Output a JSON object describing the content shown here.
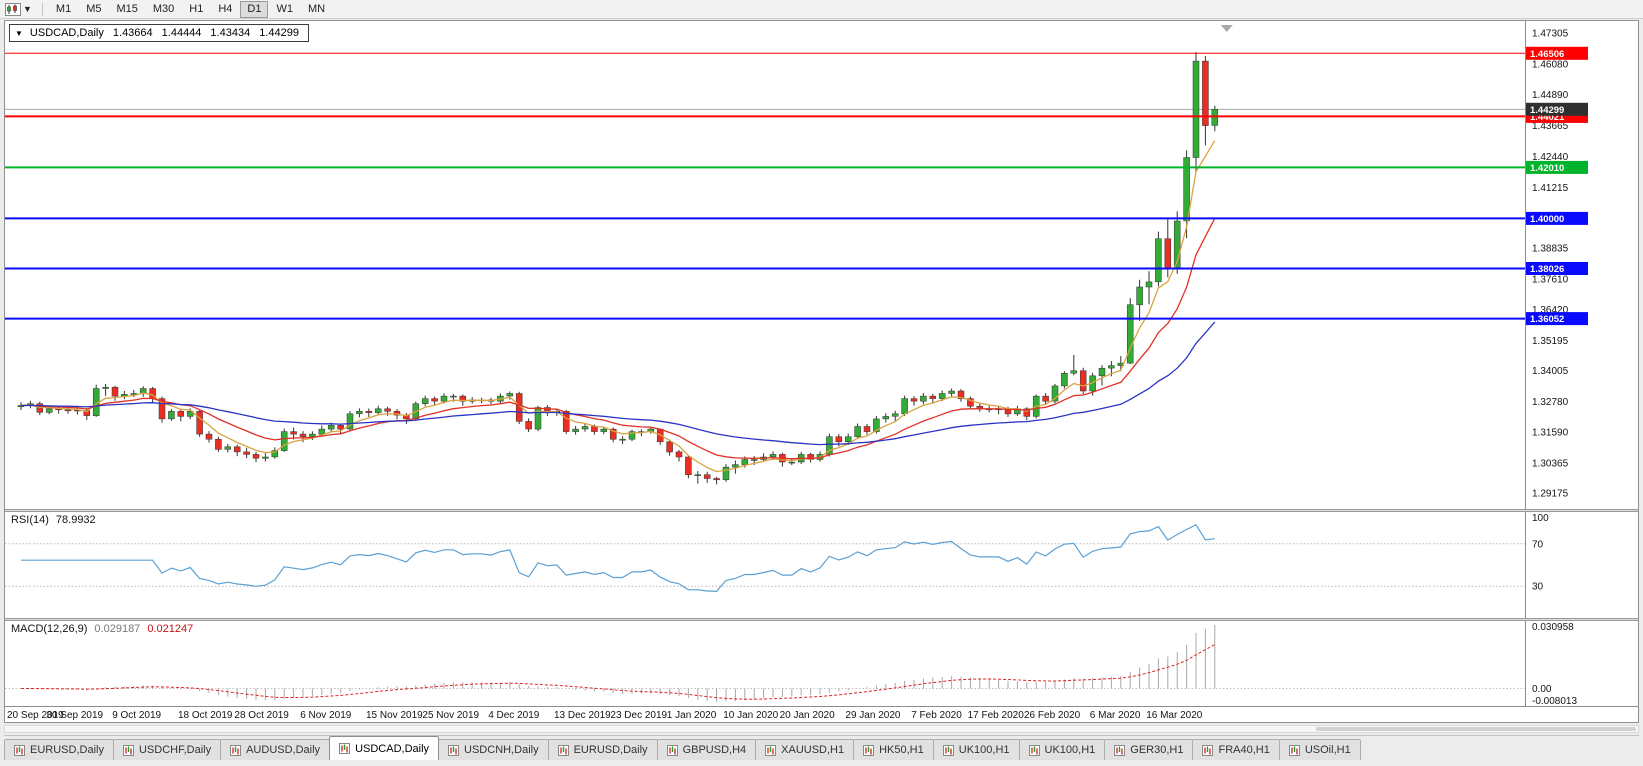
{
  "toolbar": {
    "chart_dropdown_arrow": "▼",
    "timeframes": [
      "M1",
      "M5",
      "M15",
      "M30",
      "H1",
      "H4",
      "D1",
      "W1",
      "MN"
    ],
    "active_timeframe": "D1"
  },
  "header": {
    "arrow": "▼",
    "symbol": "USDCAD,Daily",
    "open": "1.43664",
    "high": "1.44444",
    "low": "1.43434",
    "close": "1.44299"
  },
  "colors": {
    "bull": "#33ab36",
    "bear": "#ea2e24",
    "wick": "#333333",
    "ma_fast": "#d8a43e",
    "ma_medium": "#e03127",
    "ma_slow": "#2a34c4",
    "rsi_line": "#5ba0d4",
    "macd_histogram": "#a8a8a8",
    "macd_signal": "#e02424",
    "current_price_box": "#2f2f2f",
    "current_price_line": "#a8a8a8",
    "scale_text": "#141414"
  },
  "rsi": {
    "name": "RSI(14)",
    "value": "78.9932",
    "period": 14,
    "levels": [
      70,
      30
    ],
    "scale_values": [
      100,
      70,
      30
    ],
    "scale_labels": [
      "100",
      "70",
      "30"
    ]
  },
  "macd": {
    "name": "MACD(12,26,9)",
    "value_main": "0.029187",
    "value_signal": "0.021247",
    "fast": 12,
    "slow": 26,
    "signal": 9,
    "scale_top": "0.030958",
    "scale_zero": "0.00",
    "scale_bottom": "-0.008013",
    "range_min": -0.008013,
    "range_max": 0.030958
  },
  "tabs": {
    "active_index": 3,
    "items": [
      "EURUSD,Daily",
      "USDCHF,Daily",
      "AUDUSD,Daily",
      "USDCAD,Daily",
      "USDCNH,Daily",
      "EURUSD,Daily",
      "GBPUSD,H4",
      "XAUUSD,H1",
      "HK50,H1",
      "UK100,H1",
      "UK100,H1",
      "GER30,H1",
      "FRA40,H1",
      "USOil,H1"
    ]
  },
  "chart_data": {
    "type": "candlestick",
    "symbol": "USDCAD",
    "timeframe": "Daily",
    "y_range": [
      1.2855,
      1.4778
    ],
    "y_tick_labels": [
      "1.47305",
      "1.46080",
      "1.44890",
      "1.43665",
      "1.42440",
      "1.41215",
      "1.39990",
      "1.38835",
      "1.37610",
      "1.36420",
      "1.35195",
      "1.34005",
      "1.32780",
      "1.31590",
      "1.30365",
      "1.29175"
    ],
    "x_labels": [
      "20 Sep 2019",
      "30 Sep 2019",
      "9 Oct 2019",
      "18 Oct 2019",
      "28 Oct 2019",
      "6 Nov 2019",
      "15 Nov 2019",
      "25 Nov 2019",
      "4 Dec 2019",
      "13 Dec 2019",
      "23 Dec 2019",
      "1 Jan 2020",
      "10 Jan 2020",
      "20 Jan 2020",
      "29 Jan 2020",
      "7 Feb 2020",
      "17 Feb 2020",
      "26 Feb 2020",
      "6 Mar 2020",
      "16 Mar 2020"
    ],
    "x_label_indices": [
      0,
      6,
      13,
      20,
      26,
      33,
      40,
      46,
      53,
      60,
      66,
      72,
      78,
      84,
      91,
      98,
      104,
      110,
      117,
      123
    ],
    "horizontal_lines": [
      {
        "price": 1.46506,
        "label": "1.46506",
        "color": "#fe0000",
        "width": 1
      },
      {
        "price": 1.44021,
        "label": "1.44021",
        "color": "#fe0000",
        "width": 2
      },
      {
        "price": 1.4201,
        "label": "1.42010",
        "color": "#00b32c",
        "width": 2
      },
      {
        "price": 1.4,
        "label": "1.40000",
        "color": "#0a0afe",
        "width": 2
      },
      {
        "price": 1.38026,
        "label": "1.38026",
        "color": "#0a0afe",
        "width": 2
      },
      {
        "price": 1.36052,
        "label": "1.36052",
        "color": "#0a0afe",
        "width": 2
      }
    ],
    "current_price": {
      "price": 1.44299,
      "label": "1.44299"
    },
    "moving_averages": [
      {
        "period": 5,
        "method": "ema",
        "color_key": "ma_fast"
      },
      {
        "period": 13,
        "method": "ema",
        "color_key": "ma_medium"
      },
      {
        "period": 40,
        "method": "ema",
        "color_key": "ma_slow"
      }
    ],
    "indicators": [
      {
        "type": "RSI",
        "period": 14,
        "last_value": 78.9932
      },
      {
        "type": "MACD",
        "fast": 12,
        "slow": 26,
        "signal": 9,
        "last_main": 0.029187,
        "last_signal": 0.021247
      }
    ],
    "candles": [
      [
        1.3258,
        1.3276,
        1.3245,
        1.3263
      ],
      [
        1.3263,
        1.3281,
        1.3252,
        1.327
      ],
      [
        1.327,
        1.3278,
        1.3225,
        1.3236
      ],
      [
        1.3236,
        1.3262,
        1.3228,
        1.325
      ],
      [
        1.325,
        1.3259,
        1.3231,
        1.3246
      ],
      [
        1.3246,
        1.3258,
        1.323,
        1.3245
      ],
      [
        1.3245,
        1.3262,
        1.3227,
        1.3243
      ],
      [
        1.3243,
        1.3252,
        1.3206,
        1.3223
      ],
      [
        1.3223,
        1.3345,
        1.3218,
        1.333
      ],
      [
        1.333,
        1.3348,
        1.3301,
        1.3335
      ],
      [
        1.3335,
        1.3341,
        1.3281,
        1.33
      ],
      [
        1.33,
        1.332,
        1.3288,
        1.3307
      ],
      [
        1.3307,
        1.3324,
        1.3296,
        1.331
      ],
      [
        1.331,
        1.3339,
        1.3297,
        1.333
      ],
      [
        1.333,
        1.3336,
        1.3271,
        1.329
      ],
      [
        1.329,
        1.3298,
        1.3195,
        1.321
      ],
      [
        1.321,
        1.3249,
        1.3202,
        1.324
      ],
      [
        1.324,
        1.3247,
        1.32,
        1.322
      ],
      [
        1.322,
        1.3252,
        1.3209,
        1.324
      ],
      [
        1.324,
        1.3244,
        1.314,
        1.315
      ],
      [
        1.315,
        1.3162,
        1.3117,
        1.313
      ],
      [
        1.313,
        1.314,
        1.308,
        1.309
      ],
      [
        1.309,
        1.3112,
        1.3078,
        1.31
      ],
      [
        1.31,
        1.3109,
        1.3063,
        1.308
      ],
      [
        1.308,
        1.3096,
        1.3055,
        1.307
      ],
      [
        1.307,
        1.308,
        1.304,
        1.3055
      ],
      [
        1.3055,
        1.3075,
        1.3042,
        1.306
      ],
      [
        1.306,
        1.3098,
        1.3053,
        1.3085
      ],
      [
        1.3085,
        1.3172,
        1.308,
        1.316
      ],
      [
        1.316,
        1.3176,
        1.3129,
        1.315
      ],
      [
        1.315,
        1.3162,
        1.3118,
        1.314
      ],
      [
        1.314,
        1.3161,
        1.3127,
        1.315
      ],
      [
        1.315,
        1.3184,
        1.3143,
        1.317
      ],
      [
        1.317,
        1.3196,
        1.3158,
        1.3185
      ],
      [
        1.3185,
        1.3192,
        1.3152,
        1.317
      ],
      [
        1.317,
        1.3241,
        1.3163,
        1.323
      ],
      [
        1.323,
        1.3252,
        1.3216,
        1.324
      ],
      [
        1.324,
        1.3251,
        1.3218,
        1.3235
      ],
      [
        1.3235,
        1.3262,
        1.3224,
        1.325
      ],
      [
        1.325,
        1.3258,
        1.3222,
        1.324
      ],
      [
        1.324,
        1.3249,
        1.3208,
        1.3225
      ],
      [
        1.3225,
        1.3233,
        1.319,
        1.321
      ],
      [
        1.321,
        1.3279,
        1.3202,
        1.327
      ],
      [
        1.327,
        1.3302,
        1.326,
        1.329
      ],
      [
        1.329,
        1.3298,
        1.3262,
        1.328
      ],
      [
        1.328,
        1.3311,
        1.3271,
        1.33
      ],
      [
        1.33,
        1.3308,
        1.3278,
        1.33
      ],
      [
        1.33,
        1.3306,
        1.3262,
        1.328
      ],
      [
        1.328,
        1.3296,
        1.327,
        1.3285
      ],
      [
        1.3285,
        1.3294,
        1.3272,
        1.3285
      ],
      [
        1.3285,
        1.3293,
        1.3268,
        1.328
      ],
      [
        1.328,
        1.331,
        1.3268,
        1.33
      ],
      [
        1.33,
        1.3318,
        1.3286,
        1.331
      ],
      [
        1.331,
        1.3317,
        1.319,
        1.32
      ],
      [
        1.32,
        1.3212,
        1.3158,
        1.317
      ],
      [
        1.317,
        1.3262,
        1.3162,
        1.3255
      ],
      [
        1.3255,
        1.3265,
        1.3222,
        1.3235
      ],
      [
        1.3235,
        1.325,
        1.3222,
        1.324
      ],
      [
        1.324,
        1.3246,
        1.315,
        1.316
      ],
      [
        1.316,
        1.3182,
        1.3148,
        1.317
      ],
      [
        1.317,
        1.3192,
        1.316,
        1.318
      ],
      [
        1.318,
        1.3188,
        1.3148,
        1.316
      ],
      [
        1.316,
        1.3179,
        1.315,
        1.317
      ],
      [
        1.317,
        1.3176,
        1.3118,
        1.313
      ],
      [
        1.313,
        1.3142,
        1.3111,
        1.313
      ],
      [
        1.313,
        1.3168,
        1.3122,
        1.316
      ],
      [
        1.316,
        1.3169,
        1.3142,
        1.316
      ],
      [
        1.316,
        1.3174,
        1.3152,
        1.317
      ],
      [
        1.317,
        1.3173,
        1.3108,
        1.312
      ],
      [
        1.312,
        1.3128,
        1.3065,
        1.308
      ],
      [
        1.308,
        1.3088,
        1.3042,
        1.306
      ],
      [
        1.306,
        1.3066,
        1.2976,
        1.299
      ],
      [
        1.299,
        1.3005,
        1.2955,
        1.299
      ],
      [
        1.299,
        1.3002,
        1.2958,
        1.2975
      ],
      [
        1.2975,
        1.2982,
        1.2952,
        1.297
      ],
      [
        1.297,
        1.3032,
        1.2962,
        1.302
      ],
      [
        1.302,
        1.3046,
        1.2994,
        1.303
      ],
      [
        1.303,
        1.3062,
        1.3018,
        1.305
      ],
      [
        1.305,
        1.3064,
        1.3028,
        1.305
      ],
      [
        1.305,
        1.3074,
        1.304,
        1.306
      ],
      [
        1.306,
        1.3082,
        1.3048,
        1.307
      ],
      [
        1.307,
        1.3077,
        1.3022,
        1.304
      ],
      [
        1.304,
        1.3056,
        1.3028,
        1.304
      ],
      [
        1.304,
        1.308,
        1.3032,
        1.307
      ],
      [
        1.307,
        1.3077,
        1.3038,
        1.305
      ],
      [
        1.305,
        1.3082,
        1.3041,
        1.307
      ],
      [
        1.307,
        1.3152,
        1.3062,
        1.314
      ],
      [
        1.314,
        1.315,
        1.3102,
        1.312
      ],
      [
        1.312,
        1.3152,
        1.3108,
        1.314
      ],
      [
        1.314,
        1.3192,
        1.3132,
        1.318
      ],
      [
        1.318,
        1.319,
        1.3148,
        1.316
      ],
      [
        1.316,
        1.3222,
        1.3152,
        1.321
      ],
      [
        1.321,
        1.3232,
        1.3196,
        1.322
      ],
      [
        1.322,
        1.3242,
        1.3202,
        1.323
      ],
      [
        1.323,
        1.3302,
        1.3222,
        1.329
      ],
      [
        1.329,
        1.33,
        1.3262,
        1.328
      ],
      [
        1.328,
        1.3312,
        1.3268,
        1.33
      ],
      [
        1.33,
        1.3308,
        1.3272,
        1.329
      ],
      [
        1.329,
        1.3322,
        1.328,
        1.331
      ],
      [
        1.331,
        1.333,
        1.3298,
        1.332
      ],
      [
        1.332,
        1.3328,
        1.3278,
        1.329
      ],
      [
        1.329,
        1.3298,
        1.3248,
        1.326
      ],
      [
        1.326,
        1.3272,
        1.3238,
        1.325
      ],
      [
        1.325,
        1.3262,
        1.3236,
        1.325
      ],
      [
        1.325,
        1.3262,
        1.3228,
        1.325
      ],
      [
        1.325,
        1.3258,
        1.3218,
        1.323
      ],
      [
        1.323,
        1.3262,
        1.3222,
        1.325
      ],
      [
        1.325,
        1.3256,
        1.3205,
        1.322
      ],
      [
        1.322,
        1.3306,
        1.3212,
        1.33
      ],
      [
        1.33,
        1.3312,
        1.3268,
        1.328
      ],
      [
        1.328,
        1.3348,
        1.3272,
        1.334
      ],
      [
        1.334,
        1.3398,
        1.333,
        1.339
      ],
      [
        1.339,
        1.3462,
        1.3382,
        1.34
      ],
      [
        1.34,
        1.3412,
        1.3308,
        1.332
      ],
      [
        1.332,
        1.3392,
        1.3302,
        1.338
      ],
      [
        1.338,
        1.3422,
        1.3342,
        1.341
      ],
      [
        1.341,
        1.3438,
        1.3378,
        1.342
      ],
      [
        1.342,
        1.3458,
        1.3398,
        1.343
      ],
      [
        1.343,
        1.3686,
        1.3426,
        1.366
      ],
      [
        1.366,
        1.3758,
        1.3596,
        1.373
      ],
      [
        1.373,
        1.3792,
        1.3662,
        1.375
      ],
      [
        1.375,
        1.3948,
        1.3732,
        1.392
      ],
      [
        1.392,
        1.3996,
        1.3768,
        1.38
      ],
      [
        1.38,
        1.4028,
        1.3782,
        1.399
      ],
      [
        1.399,
        1.4268,
        1.3922,
        1.424
      ],
      [
        1.424,
        1.4656,
        1.4182,
        1.462
      ],
      [
        1.462,
        1.464,
        1.4288,
        1.4366
      ],
      [
        1.43664,
        1.44444,
        1.43434,
        1.44299
      ]
    ]
  }
}
